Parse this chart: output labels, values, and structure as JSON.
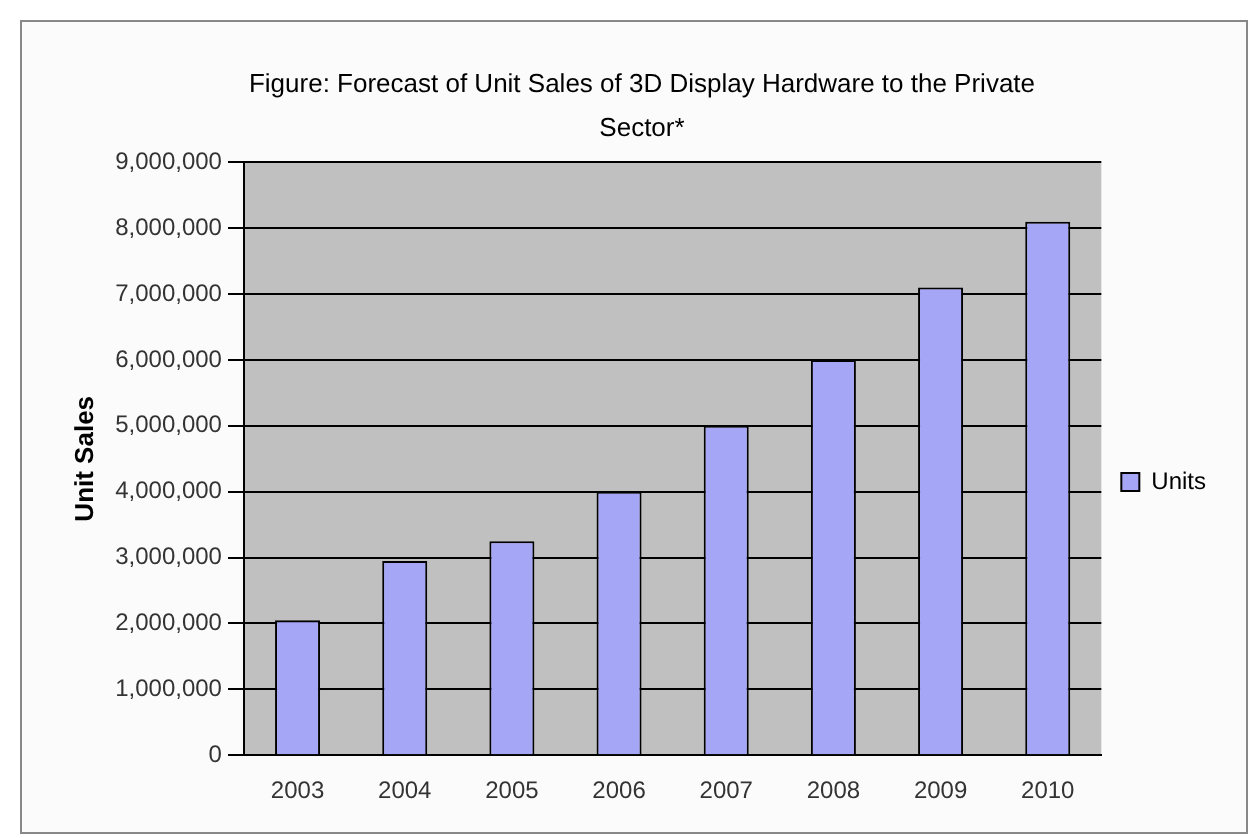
{
  "chart_data": {
    "type": "bar",
    "title": "Figure: Forecast of Unit Sales of 3D Display Hardware to the Private Sector*",
    "ylabel": "Unit Sales",
    "categories": [
      "2003",
      "2004",
      "2005",
      "2006",
      "2007",
      "2008",
      "2009",
      "2010"
    ],
    "series": [
      {
        "name": "Units",
        "color": "#a6a6f7",
        "values": [
          2050000,
          2950000,
          3250000,
          4000000,
          5000000,
          6000000,
          7100000,
          8100000
        ]
      }
    ],
    "ylim": [
      0,
      9000000
    ],
    "yticks": [
      0,
      {
        "value": 1000000,
        "label": "1,000,000"
      },
      {
        "value": 2000000,
        "label": "2,000,000"
      },
      {
        "value": 3000000,
        "label": "3,000,000"
      },
      {
        "value": 4000000,
        "label": "4,000,000"
      },
      {
        "value": 5000000,
        "label": "5,000,000"
      },
      {
        "value": 6000000,
        "label": "6,000,000"
      },
      {
        "value": 7000000,
        "label": "7,000,000"
      },
      {
        "value": 8000000,
        "label": "8,000,000"
      },
      {
        "value": 9000000,
        "label": "9,000,000"
      }
    ],
    "grid": "y",
    "legend": "right"
  }
}
